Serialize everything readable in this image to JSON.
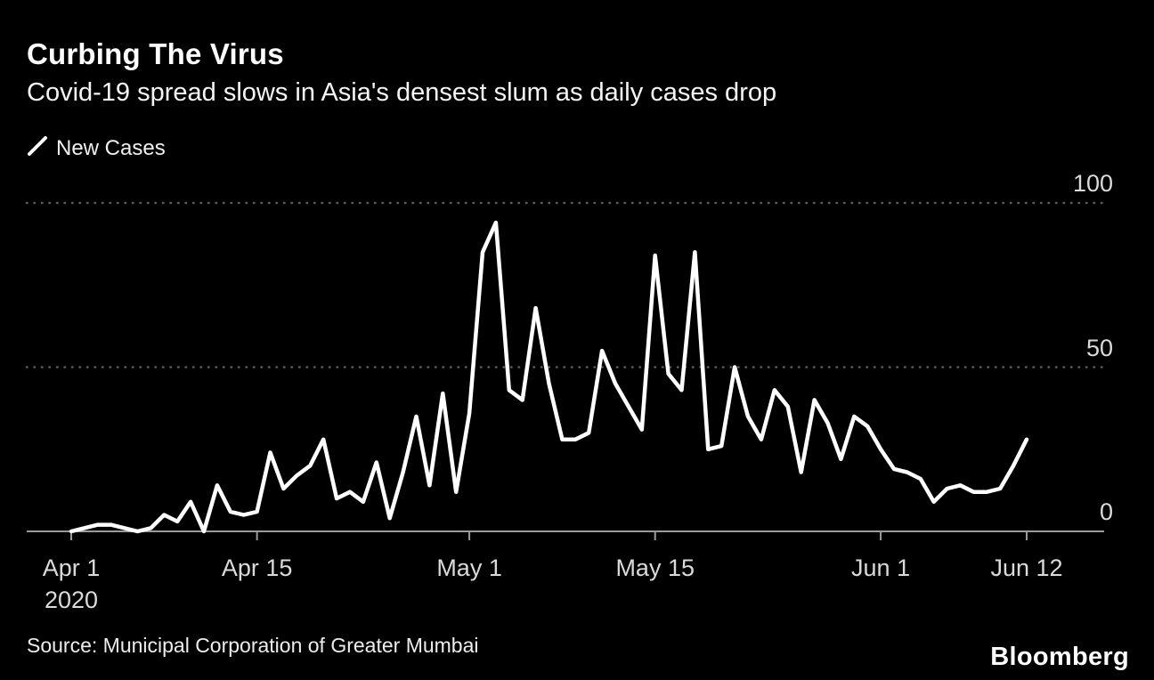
{
  "header": {
    "title": "Curbing The Virus",
    "subtitle": "Covid-19 spread slows in Asia's densest slum as daily cases drop"
  },
  "legend": {
    "label": "New Cases"
  },
  "footer": {
    "source": "Source: Municipal Corporation of Greater Mumbai",
    "brand": "Bloomberg"
  },
  "colors": {
    "background": "#000000",
    "line": "#ffffff",
    "grid": "#5c5c5c",
    "axis": "#9b9b9b",
    "tick_label": "#dadada"
  },
  "chart_data": {
    "type": "line",
    "title": "Curbing The Virus",
    "subtitle": "Covid-19 spread slows in Asia's densest slum as daily cases drop",
    "x_start": "2020-04-01",
    "x_end": "2020-06-12",
    "ylim": [
      0,
      100
    ],
    "y_ticks": [
      0,
      50,
      100
    ],
    "grid": "dotted horizontal lines at 50 and 100, solid baseline at 0",
    "legend_position": "top-left",
    "x_ticks": [
      {
        "index": 0,
        "label": "Apr 1",
        "sublabel": "2020"
      },
      {
        "index": 14,
        "label": "Apr 15"
      },
      {
        "index": 30,
        "label": "May 1"
      },
      {
        "index": 44,
        "label": "May 15"
      },
      {
        "index": 61,
        "label": "Jun 1"
      },
      {
        "index": 72,
        "label": "Jun 12"
      }
    ],
    "series": [
      {
        "name": "New Cases",
        "values": [
          0,
          1,
          2,
          2,
          1,
          0,
          1,
          5,
          3,
          9,
          0,
          14,
          6,
          5,
          6,
          24,
          13,
          17,
          20,
          28,
          10,
          12,
          9,
          21,
          4,
          18,
          35,
          14,
          42,
          12,
          36,
          85,
          94,
          43,
          40,
          68,
          45,
          28,
          28,
          30,
          55,
          45,
          38,
          31,
          84,
          48,
          43,
          85,
          25,
          26,
          50,
          35,
          28,
          43,
          38,
          18,
          40,
          33,
          22,
          35,
          32,
          25,
          19,
          18,
          16,
          9,
          13,
          14,
          12,
          12,
          13,
          20,
          28
        ]
      }
    ]
  }
}
